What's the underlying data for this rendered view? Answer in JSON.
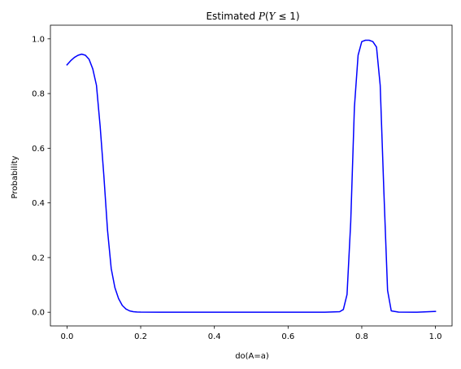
{
  "chart_data": {
    "type": "line",
    "title": {
      "prefix": "Estimated ",
      "math": "P",
      "middle": "(",
      "var": "Y",
      "rest": " ≤ 1)"
    },
    "xlabel": "do(A=a)",
    "ylabel": "Probability",
    "xlim": [
      -0.045,
      1.045
    ],
    "ylim": [
      -0.05,
      1.05
    ],
    "xticks": [
      0.0,
      0.2,
      0.4,
      0.6,
      0.8,
      1.0
    ],
    "xtick_labels": [
      "0.0",
      "0.2",
      "0.4",
      "0.6",
      "0.8",
      "1.0"
    ],
    "yticks": [
      0.0,
      0.2,
      0.4,
      0.6,
      0.8,
      1.0
    ],
    "ytick_labels": [
      "0.0",
      "0.2",
      "0.4",
      "0.6",
      "0.8",
      "1.0"
    ],
    "grid": false,
    "series": [
      {
        "color": "#0000ff",
        "x": [
          0.0,
          0.01,
          0.02,
          0.03,
          0.04,
          0.05,
          0.06,
          0.07,
          0.08,
          0.09,
          0.1,
          0.11,
          0.12,
          0.13,
          0.14,
          0.15,
          0.16,
          0.17,
          0.18,
          0.19,
          0.2,
          0.25,
          0.3,
          0.4,
          0.5,
          0.6,
          0.7,
          0.74,
          0.75,
          0.76,
          0.77,
          0.78,
          0.79,
          0.8,
          0.81,
          0.82,
          0.83,
          0.84,
          0.85,
          0.86,
          0.87,
          0.88,
          0.9,
          0.95,
          1.0
        ],
        "y": [
          0.905,
          0.92,
          0.932,
          0.94,
          0.944,
          0.94,
          0.925,
          0.89,
          0.83,
          0.68,
          0.5,
          0.3,
          0.16,
          0.09,
          0.05,
          0.025,
          0.012,
          0.005,
          0.002,
          0.001,
          0.0005,
          0.0,
          0.0,
          0.0,
          0.0,
          0.0,
          0.0,
          0.002,
          0.01,
          0.065,
          0.33,
          0.75,
          0.94,
          0.99,
          0.995,
          0.995,
          0.99,
          0.97,
          0.83,
          0.44,
          0.08,
          0.005,
          0.0005,
          0.0,
          0.003
        ]
      }
    ]
  }
}
